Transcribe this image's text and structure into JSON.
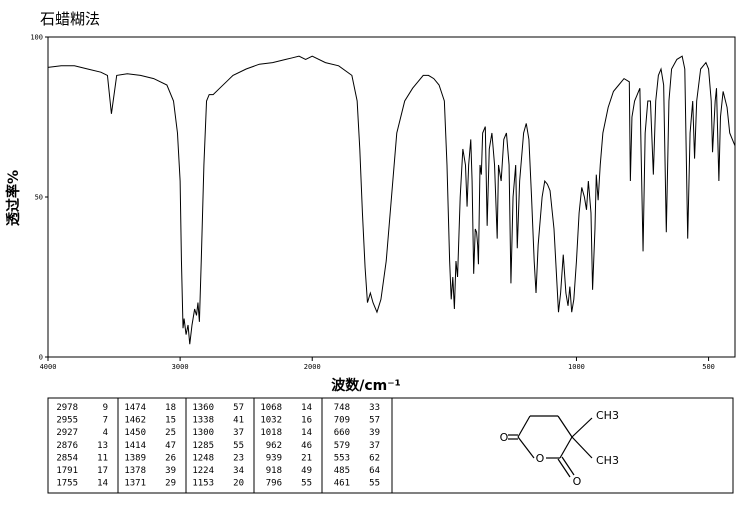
{
  "chart_data": {
    "type": "line",
    "title": "石蜡糊法",
    "xlabel": "波数/cm⁻¹",
    "ylabel": "透过率%",
    "xlim": [
      4000,
      400
    ],
    "x_scale_break": 2000,
    "x_scale_ratio": 2,
    "xticks": [
      4000,
      3000,
      2000,
      1000,
      500
    ],
    "ylim": [
      0,
      100
    ],
    "yticks": [
      0,
      50,
      100
    ],
    "color": "#000000",
    "x": [
      4000,
      3900,
      3800,
      3700,
      3600,
      3550,
      3520,
      3480,
      3400,
      3300,
      3200,
      3100,
      3050,
      3020,
      3000,
      2990,
      2978,
      2970,
      2955,
      2940,
      2927,
      2910,
      2890,
      2876,
      2865,
      2854,
      2840,
      2820,
      2800,
      2780,
      2750,
      2700,
      2650,
      2600,
      2500,
      2400,
      2300,
      2200,
      2150,
      2100,
      2050,
      2000,
      1950,
      1900,
      1850,
      1830,
      1820,
      1810,
      1800,
      1791,
      1780,
      1770,
      1755,
      1740,
      1720,
      1700,
      1680,
      1650,
      1620,
      1600,
      1580,
      1560,
      1540,
      1520,
      1500,
      1490,
      1480,
      1474,
      1468,
      1462,
      1456,
      1450,
      1440,
      1430,
      1420,
      1414,
      1408,
      1400,
      1395,
      1389,
      1383,
      1378,
      1374,
      1371,
      1365,
      1360,
      1355,
      1345,
      1338,
      1330,
      1320,
      1310,
      1300,
      1295,
      1285,
      1275,
      1265,
      1255,
      1248,
      1240,
      1230,
      1224,
      1215,
      1200,
      1190,
      1180,
      1170,
      1160,
      1153,
      1145,
      1130,
      1120,
      1110,
      1100,
      1085,
      1068,
      1060,
      1050,
      1040,
      1032,
      1025,
      1018,
      1010,
      1000,
      990,
      980,
      970,
      962,
      955,
      945,
      939,
      930,
      925,
      918,
      910,
      900,
      880,
      860,
      840,
      820,
      800,
      796,
      790,
      780,
      760,
      748,
      740,
      730,
      720,
      709,
      700,
      690,
      680,
      670,
      660,
      650,
      640,
      620,
      600,
      590,
      579,
      570,
      560,
      553,
      545,
      530,
      510,
      500,
      490,
      485,
      475,
      470,
      461,
      455,
      445,
      430,
      420,
      410,
      400
    ],
    "values": [
      90.5,
      91,
      91,
      90,
      89,
      88,
      76,
      88,
      88.5,
      88,
      87,
      85,
      80,
      70,
      55,
      30,
      9,
      12,
      7,
      10,
      4,
      10,
      15,
      13,
      17,
      11,
      30,
      60,
      80,
      82,
      82,
      84,
      86,
      88,
      90,
      91.5,
      92,
      93,
      93.5,
      94,
      93,
      94,
      92,
      91,
      88,
      80,
      65,
      45,
      28,
      17,
      20,
      17,
      14,
      18,
      30,
      50,
      70,
      80,
      84,
      86,
      88,
      88,
      87,
      85,
      80,
      60,
      30,
      18,
      25,
      15,
      30,
      25,
      50,
      65,
      60,
      47,
      60,
      68,
      55,
      26,
      40,
      39,
      35,
      29,
      60,
      57,
      70,
      72,
      41,
      65,
      70,
      60,
      37,
      60,
      55,
      68,
      70,
      60,
      23,
      50,
      60,
      34,
      55,
      70,
      73,
      68,
      50,
      30,
      20,
      35,
      50,
      55,
      54,
      52,
      40,
      14,
      20,
      32,
      20,
      16,
      22,
      14,
      18,
      30,
      45,
      53,
      50,
      46,
      55,
      45,
      21,
      40,
      57,
      49,
      60,
      70,
      78,
      83,
      85,
      87,
      86,
      55,
      75,
      80,
      84,
      33,
      70,
      80,
      80,
      57,
      80,
      88,
      90,
      85,
      39,
      80,
      90,
      93,
      94,
      90,
      37,
      70,
      80,
      62,
      80,
      90,
      92,
      90,
      80,
      64,
      80,
      84,
      55,
      75,
      83,
      78,
      70,
      68,
      66
    ]
  },
  "peak_table": {
    "rows": [
      [
        2978,
        9
      ],
      [
        2955,
        7
      ],
      [
        2927,
        4
      ],
      [
        2876,
        13
      ],
      [
        2854,
        11
      ],
      [
        1791,
        17
      ],
      [
        1755,
        14
      ],
      [
        1474,
        18
      ],
      [
        1462,
        15
      ],
      [
        1450,
        25
      ],
      [
        1414,
        47
      ],
      [
        1389,
        26
      ],
      [
        1378,
        39
      ],
      [
        1371,
        29
      ],
      [
        1360,
        57
      ],
      [
        1338,
        41
      ],
      [
        1300,
        37
      ],
      [
        1285,
        55
      ],
      [
        1248,
        23
      ],
      [
        1224,
        34
      ],
      [
        1153,
        20
      ],
      [
        1068,
        14
      ],
      [
        1032,
        16
      ],
      [
        1018,
        14
      ],
      [
        962,
        46
      ],
      [
        939,
        21
      ],
      [
        918,
        49
      ],
      [
        796,
        55
      ],
      [
        748,
        33
      ],
      [
        709,
        57
      ],
      [
        660,
        39
      ],
      [
        579,
        37
      ],
      [
        553,
        62
      ],
      [
        485,
        64
      ],
      [
        461,
        55
      ]
    ]
  },
  "structure": {
    "labels": [
      "O",
      "O",
      "O",
      "CH3",
      "CH3"
    ]
  }
}
